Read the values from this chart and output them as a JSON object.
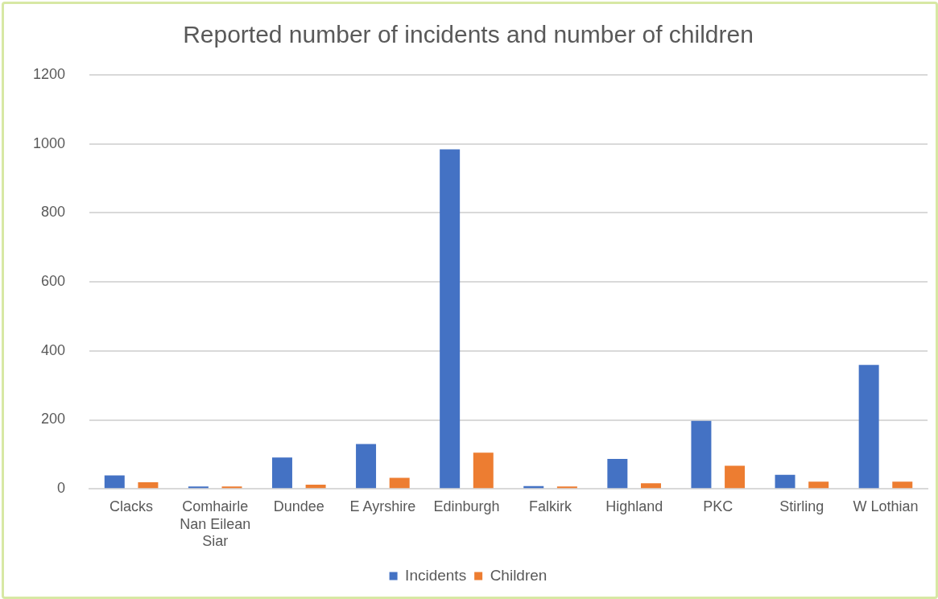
{
  "chart_data": {
    "type": "bar",
    "title": "Reported number of incidents and number of children",
    "categories": [
      "Clacks",
      "Comhairle Nan Eilean Siar",
      "Dundee",
      "E Ayrshire",
      "Edinburgh",
      "Falkirk",
      "Highland",
      "PKC",
      "Stirling",
      "W Lothian"
    ],
    "series": [
      {
        "name": "Incidents",
        "color": "#4472c4",
        "values": [
          39,
          7,
          91,
          130,
          984,
          8,
          87,
          197,
          41,
          359
        ]
      },
      {
        "name": "Children",
        "color": "#ed7d31",
        "values": [
          19,
          7,
          12,
          32,
          105,
          7,
          16,
          67,
          21,
          21
        ]
      }
    ],
    "ylim": [
      0,
      1200
    ],
    "yticks": [
      0,
      200,
      400,
      600,
      800,
      1000,
      1200
    ],
    "grid": "y",
    "legend": "bottom"
  }
}
